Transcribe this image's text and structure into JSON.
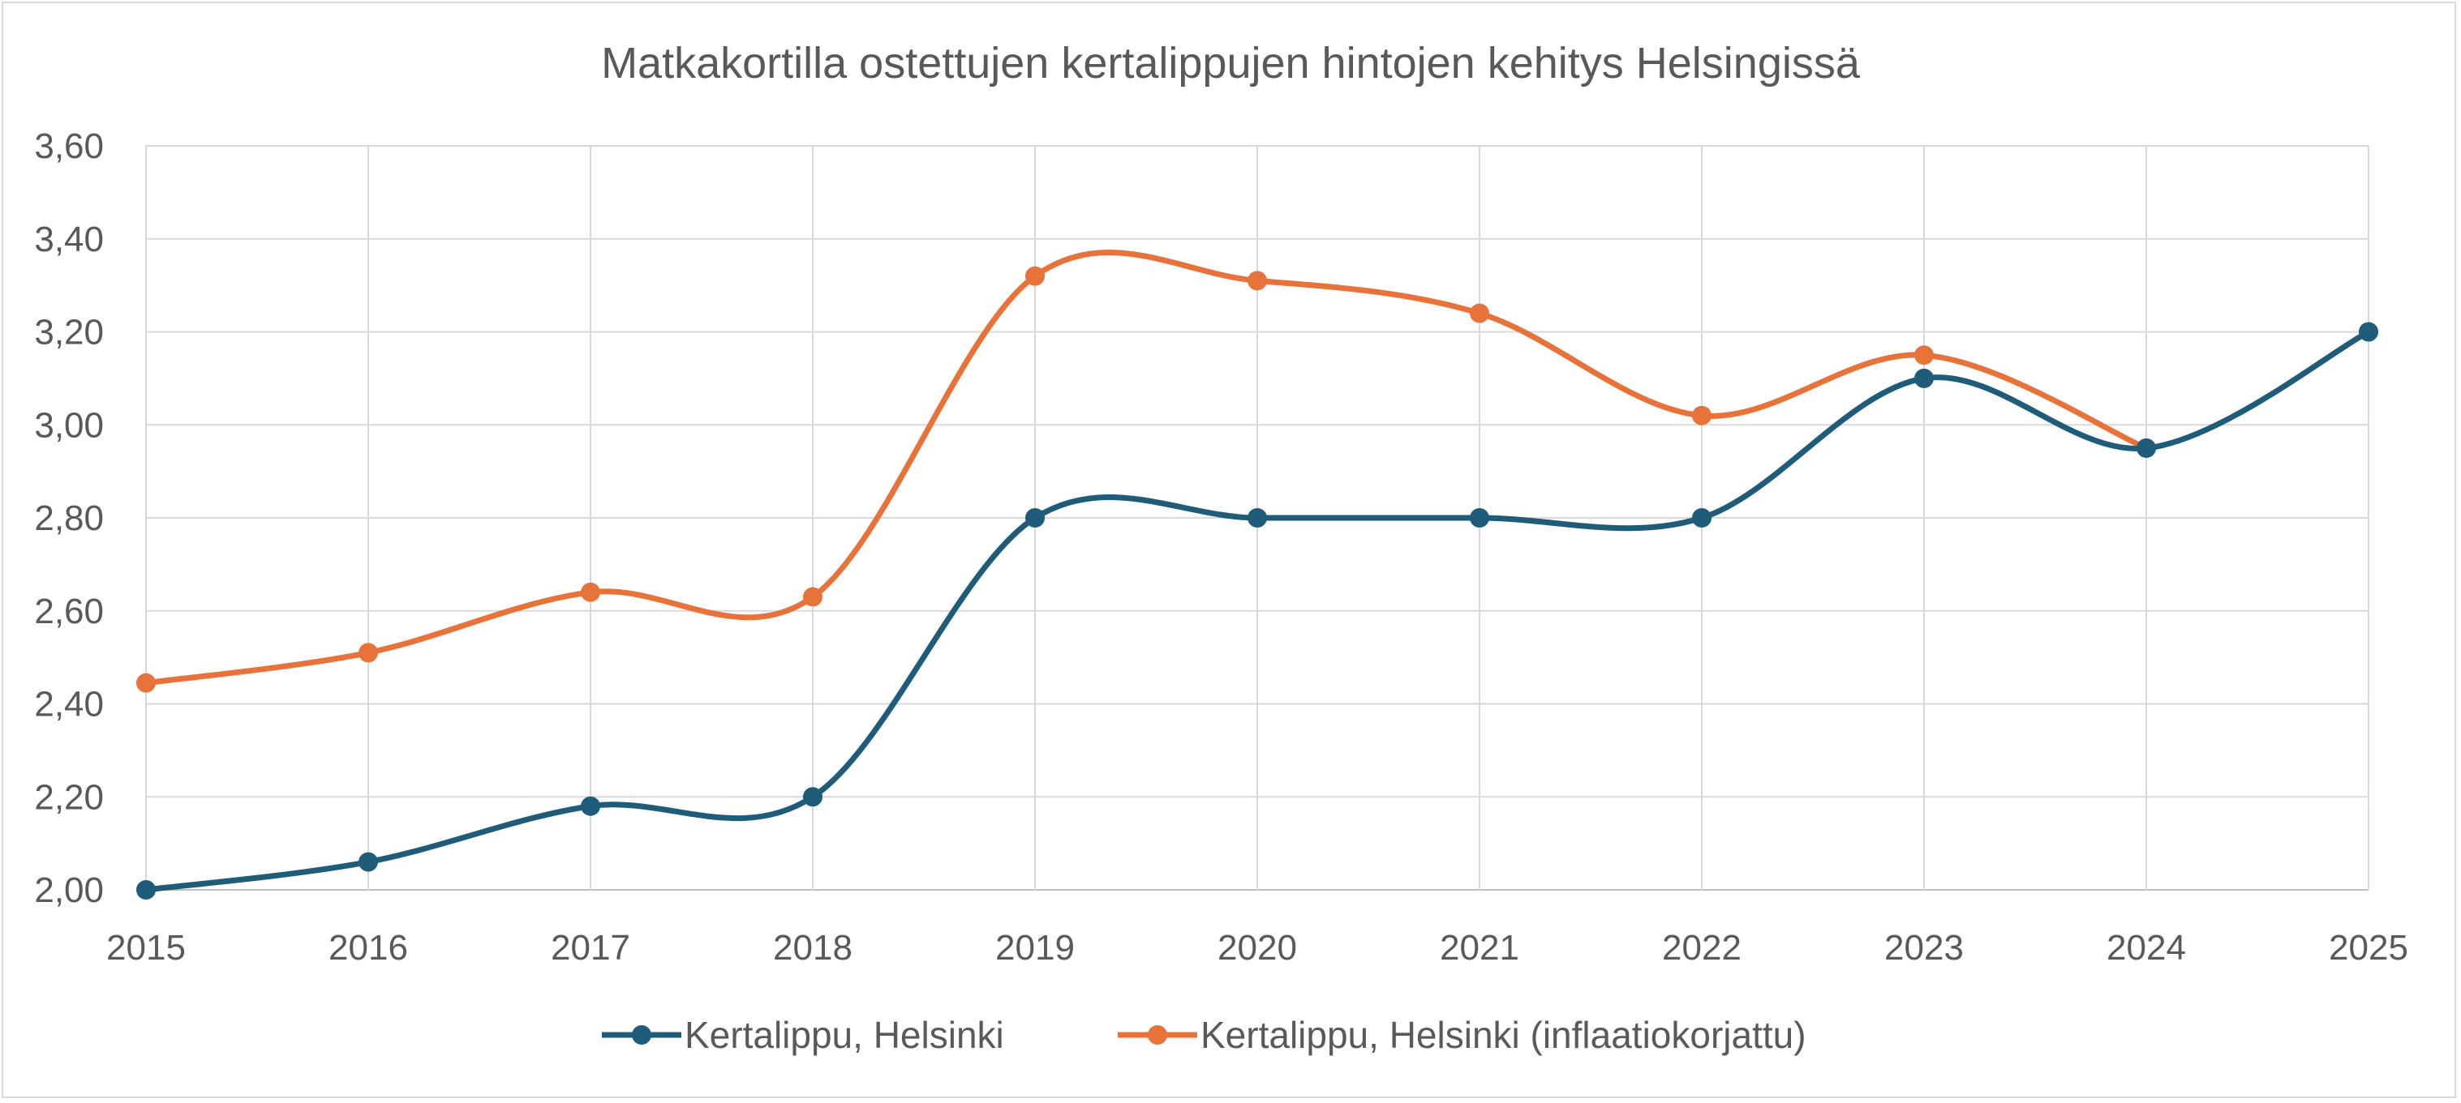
{
  "chart_data": {
    "type": "line",
    "title": "Matkakortilla ostettujen kertalippujen hintojen kehitys Helsingissä",
    "xlabel": "",
    "ylabel": "",
    "x": [
      "2015",
      "2016",
      "2017",
      "2018",
      "2019",
      "2020",
      "2021",
      "2022",
      "2023",
      "2024",
      "2025"
    ],
    "y_ticks": [
      "2,00",
      "2,20",
      "2,40",
      "2,60",
      "2,80",
      "3,00",
      "3,20",
      "3,40",
      "3,60"
    ],
    "ylim": [
      2.0,
      3.6
    ],
    "grid": true,
    "legend_position": "bottom",
    "series": [
      {
        "name": "Kertalippu, Helsinki",
        "color": "#1f5c7a",
        "values": [
          2.0,
          2.06,
          2.18,
          2.2,
          2.8,
          2.8,
          2.8,
          2.8,
          3.1,
          2.95,
          3.2
        ]
      },
      {
        "name": "Kertalippu, Helsinki (inflaatiokorjattu)",
        "color": "#e8733a",
        "values": [
          2.445,
          2.51,
          2.64,
          2.63,
          3.32,
          3.31,
          3.24,
          3.02,
          3.15,
          2.95,
          null
        ]
      }
    ]
  }
}
